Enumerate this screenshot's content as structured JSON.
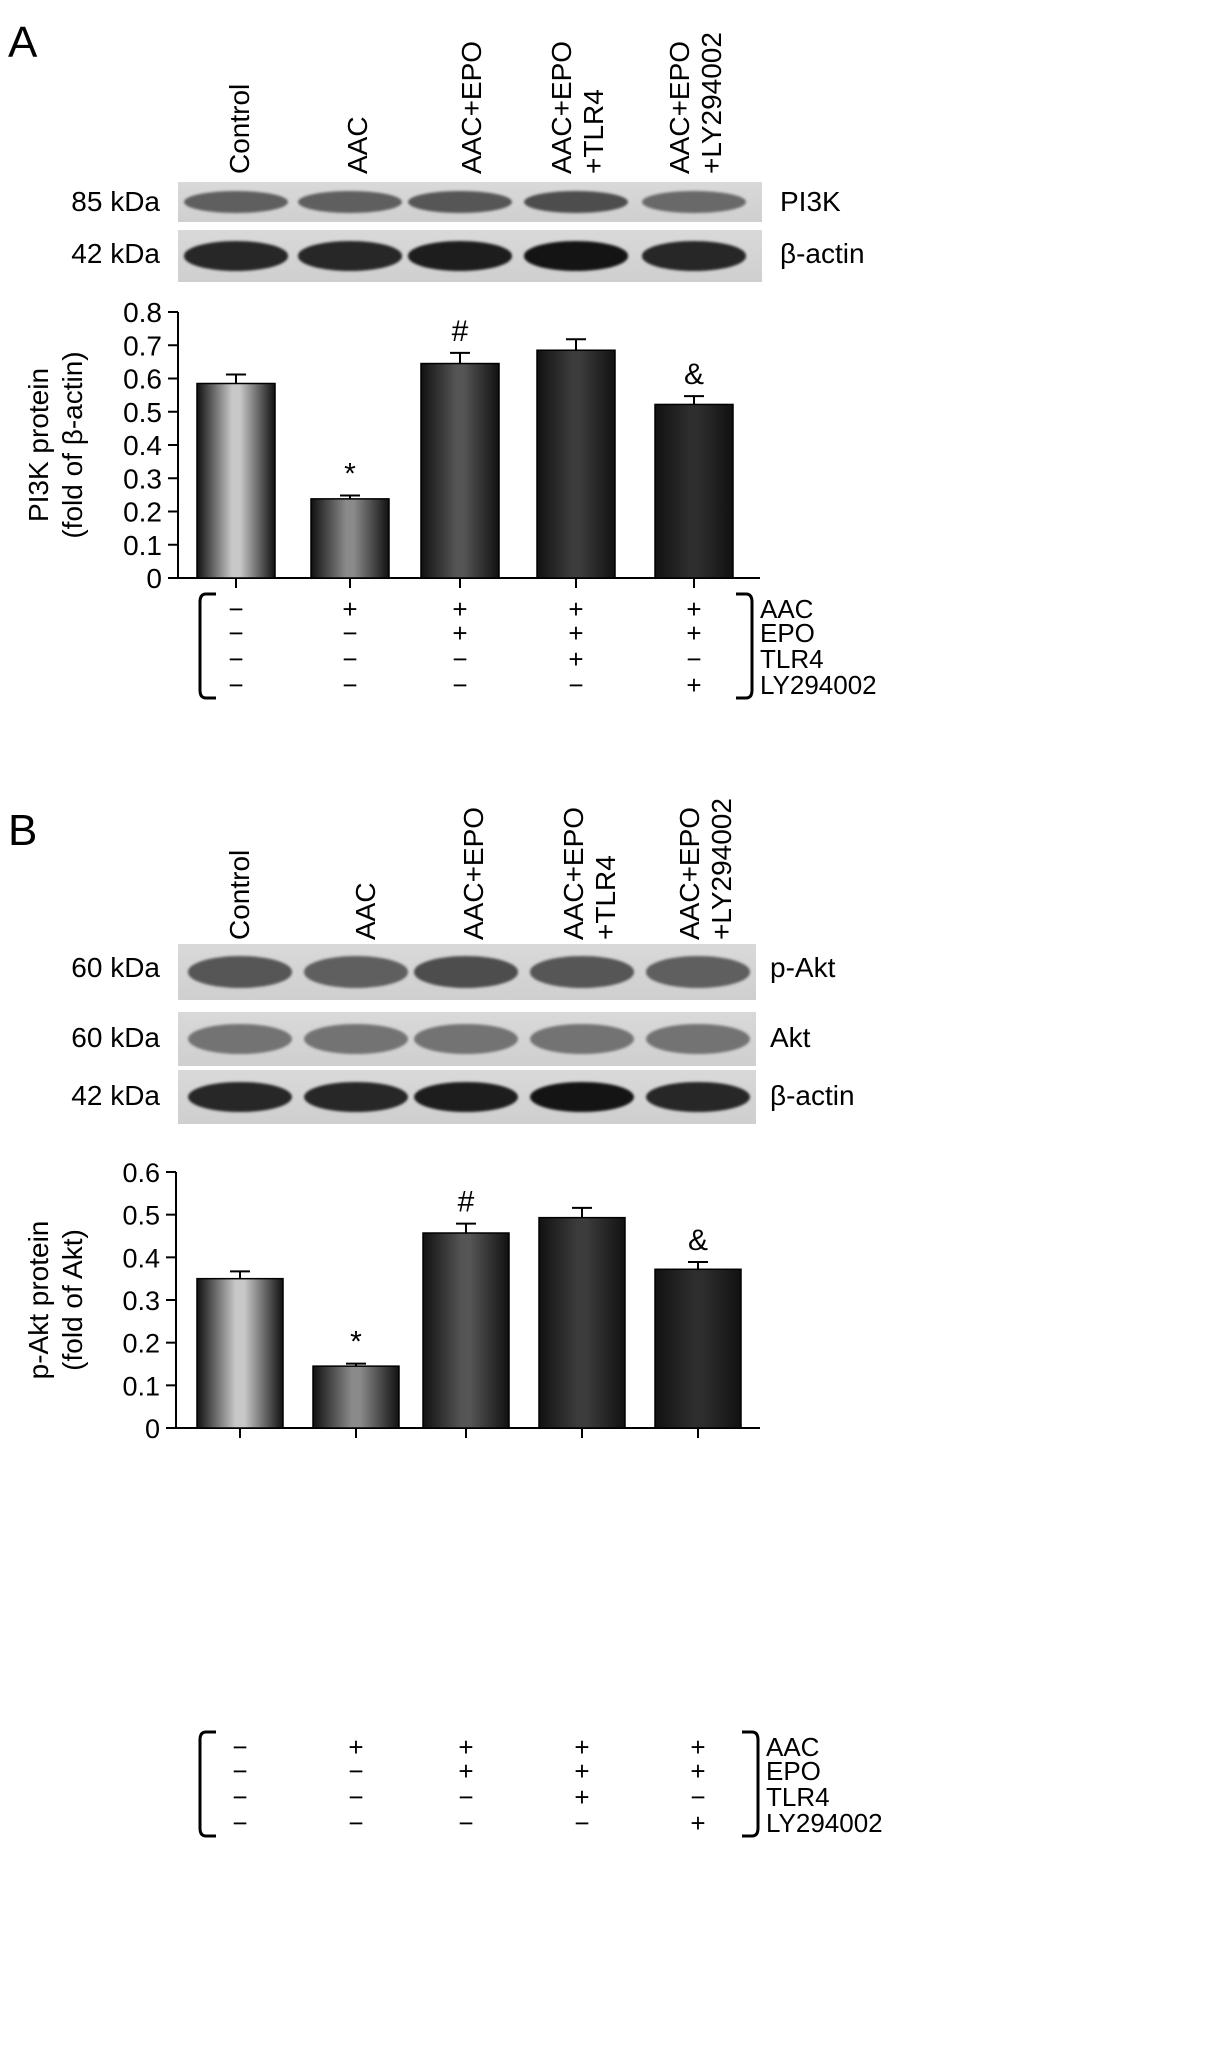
{
  "panels": [
    {
      "letter": "A",
      "lanes": [
        {
          "l1": "Control",
          "l2": ""
        },
        {
          "l1": "AAC",
          "l2": ""
        },
        {
          "l1": "AAC+EPO",
          "l2": ""
        },
        {
          "l1": "AAC+EPO",
          "l2": "+TLR4"
        },
        {
          "l1": "AAC+EPO",
          "l2": "+LY294002"
        }
      ],
      "blots": [
        {
          "kda": "85 kDa",
          "protein": "PI3K",
          "darkness": [
            0.55,
            0.55,
            0.6,
            0.65,
            0.5
          ]
        },
        {
          "kda": "42 kDa",
          "protein": "β-actin",
          "darkness": [
            0.85,
            0.85,
            0.9,
            0.95,
            0.85
          ]
        }
      ],
      "factor_labels": [
        "AAC",
        "EPO",
        "TLR4",
        "LY294002"
      ],
      "factor_matrix": [
        [
          "−",
          "+",
          "+",
          "+",
          "+"
        ],
        [
          "−",
          "−",
          "+",
          "+",
          "+"
        ],
        [
          "−",
          "−",
          "−",
          "+",
          "−"
        ],
        [
          "−",
          "−",
          "−",
          "−",
          "+"
        ]
      ]
    },
    {
      "letter": "B",
      "lanes": [
        {
          "l1": "Control",
          "l2": ""
        },
        {
          "l1": "AAC",
          "l2": ""
        },
        {
          "l1": "AAC+EPO",
          "l2": ""
        },
        {
          "l1": "AAC+EPO",
          "l2": "+TLR4"
        },
        {
          "l1": "AAC+EPO",
          "l2": "+LY294002"
        }
      ],
      "blots": [
        {
          "kda": "60 kDa",
          "protein": "p-Akt",
          "darkness": [
            0.6,
            0.55,
            0.65,
            0.6,
            0.55
          ]
        },
        {
          "kda": "60 kDa",
          "protein": "Akt",
          "darkness": [
            0.45,
            0.45,
            0.45,
            0.45,
            0.45
          ]
        },
        {
          "kda": "42 kDa",
          "protein": "β-actin",
          "darkness": [
            0.85,
            0.85,
            0.9,
            0.95,
            0.85
          ]
        }
      ],
      "factor_labels": [
        "AAC",
        "EPO",
        "TLR4",
        "LY294002"
      ],
      "factor_matrix": [
        [
          "−",
          "+",
          "+",
          "+",
          "+"
        ],
        [
          "−",
          "−",
          "+",
          "+",
          "+"
        ],
        [
          "−",
          "−",
          "−",
          "+",
          "−"
        ],
        [
          "−",
          "−",
          "−",
          "−",
          "+"
        ]
      ]
    }
  ],
  "chart_data": [
    {
      "type": "bar",
      "categories": [
        "Control",
        "AAC",
        "AAC+EPO",
        "AAC+EPO+TLR4",
        "AAC+EPO+LY294002"
      ],
      "values": [
        0.585,
        0.238,
        0.645,
        0.685,
        0.522
      ],
      "errors": [
        0.027,
        0.01,
        0.032,
        0.033,
        0.025
      ],
      "annotations": [
        "",
        "*",
        "#",
        "",
        "&"
      ],
      "ylabel_line1": "PI3K protein",
      "ylabel_line2": "(fold of β-actin)",
      "ylim": [
        0,
        0.8
      ],
      "yticks": [
        "0",
        "0.1",
        "0.2",
        "0.3",
        "0.4",
        "0.5",
        "0.6",
        "0.7",
        "0.8"
      ],
      "bar_colors": [
        "#9a9a9a",
        "#6e6e6e",
        "#3e3e3e",
        "#2a2a2a",
        "#1e1e1e"
      ]
    },
    {
      "type": "bar",
      "categories": [
        "Control",
        "AAC",
        "AAC+EPO",
        "AAC+EPO+TLR4",
        "AAC+EPO+LY294002"
      ],
      "values": [
        0.35,
        0.145,
        0.457,
        0.493,
        0.372
      ],
      "errors": [
        0.017,
        0.006,
        0.022,
        0.023,
        0.017
      ],
      "annotations": [
        "",
        "*",
        "#",
        "",
        "&"
      ],
      "ylabel_line1": "p-Akt protein",
      "ylabel_line2": "(fold of Akt)",
      "ylim": [
        0,
        0.6
      ],
      "yticks": [
        "0",
        "0.1",
        "0.2",
        "0.3",
        "0.4",
        "0.5",
        "0.6"
      ],
      "bar_colors": [
        "#9a9a9a",
        "#6e6e6e",
        "#3e3e3e",
        "#2a2a2a",
        "#1e1e1e"
      ]
    }
  ]
}
